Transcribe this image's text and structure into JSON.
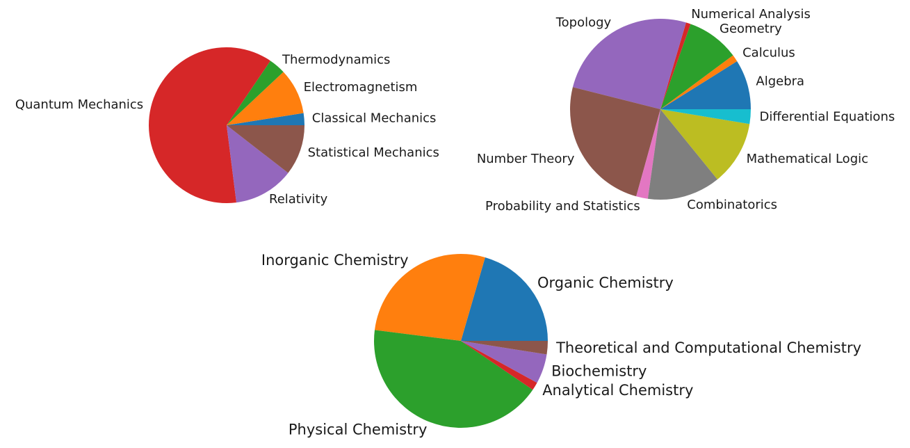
{
  "chart_data": [
    {
      "type": "pie",
      "name": "physics",
      "start_angle": 0,
      "direction": "counterclockwise",
      "grid": false,
      "legend": "none",
      "slices": [
        {
          "label": "Classical Mechanics",
          "value": 2.5,
          "color": "#1f77b4"
        },
        {
          "label": "Electromagnetism",
          "value": 9.5,
          "color": "#ff7f0e"
        },
        {
          "label": "Thermodynamics",
          "value": 3.5,
          "color": "#2ca02c"
        },
        {
          "label": "Quantum Mechanics",
          "value": 61.5,
          "color": "#d62728"
        },
        {
          "label": "Relativity",
          "value": 12.5,
          "color": "#9467bd"
        },
        {
          "label": "Statistical Mechanics",
          "value": 10.5,
          "color": "#8c564b"
        }
      ]
    },
    {
      "type": "pie",
      "name": "mathematics",
      "start_angle": 0,
      "direction": "counterclockwise",
      "grid": false,
      "legend": "none",
      "slices": [
        {
          "label": "Algebra",
          "value": 8.5,
          "color": "#1f77b4"
        },
        {
          "label": "Calculus",
          "value": 1.2,
          "color": "#ff7f0e"
        },
        {
          "label": "Geometry",
          "value": 9.0,
          "color": "#2ca02c"
        },
        {
          "label": "Numerical Analysis",
          "value": 0.8,
          "color": "#d62728"
        },
        {
          "label": "Topology",
          "value": 24.5,
          "color": "#9467bd"
        },
        {
          "label": "Number Theory",
          "value": 23.5,
          "color": "#8c564b"
        },
        {
          "label": "Probability and Statistics",
          "value": 2.0,
          "color": "#e377c2"
        },
        {
          "label": "Combinatorics",
          "value": 12.5,
          "color": "#7f7f7f"
        },
        {
          "label": "Mathematical Logic",
          "value": 11.0,
          "color": "#bcbd22"
        },
        {
          "label": "Differential Equations",
          "value": 2.5,
          "color": "#17becf"
        }
      ]
    },
    {
      "type": "pie",
      "name": "chemistry",
      "start_angle": 0,
      "direction": "counterclockwise",
      "grid": false,
      "legend": "none",
      "slices": [
        {
          "label": "Organic Chemistry",
          "value": 20.5,
          "color": "#1f77b4"
        },
        {
          "label": "Inorganic Chemistry",
          "value": 27.5,
          "color": "#ff7f0e"
        },
        {
          "label": "Physical Chemistry",
          "value": 42.5,
          "color": "#2ca02c"
        },
        {
          "label": "Analytical Chemistry",
          "value": 1.5,
          "color": "#d62728"
        },
        {
          "label": "Biochemistry",
          "value": 5.5,
          "color": "#9467bd"
        },
        {
          "label": "Theoretical and Computational Chemistry",
          "value": 2.5,
          "color": "#8c564b"
        }
      ]
    }
  ]
}
